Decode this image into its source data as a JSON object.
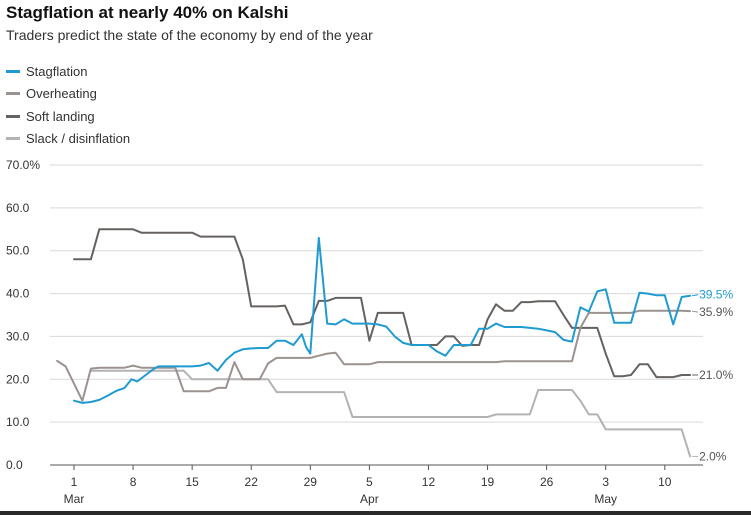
{
  "title": "Stagflation at nearly 40% on Kalshi",
  "subtitle": "Traders predict the state of the economy by end of the year",
  "chart_data": {
    "type": "line",
    "title": "Stagflation at nearly 40% on Kalshi",
    "subtitle": "Traders predict the state of the economy by end of the year",
    "xlabel": "",
    "ylabel": "",
    "ylim": [
      0,
      70
    ],
    "yticks": [
      {
        "value": 0,
        "label": "0.0"
      },
      {
        "value": 10,
        "label": "10.0"
      },
      {
        "value": 20,
        "label": "20.0"
      },
      {
        "value": 30,
        "label": "30.0"
      },
      {
        "value": 40,
        "label": "40.0"
      },
      {
        "value": 50,
        "label": "50.0"
      },
      {
        "value": 60,
        "label": "60.0"
      },
      {
        "value": 70,
        "label": "70.0%"
      }
    ],
    "xlim": [
      0,
      74
    ],
    "xticks": [
      {
        "x": 1,
        "label": "1",
        "sub": "Mar"
      },
      {
        "x": 8,
        "label": "8",
        "sub": ""
      },
      {
        "x": 15,
        "label": "15",
        "sub": ""
      },
      {
        "x": 22,
        "label": "22",
        "sub": ""
      },
      {
        "x": 29,
        "label": "29",
        "sub": ""
      },
      {
        "x": 36,
        "label": "5",
        "sub": "Apr"
      },
      {
        "x": 43,
        "label": "12",
        "sub": ""
      },
      {
        "x": 50,
        "label": "19",
        "sub": ""
      },
      {
        "x": 57,
        "label": "26",
        "sub": ""
      },
      {
        "x": 64,
        "label": "3",
        "sub": "May"
      },
      {
        "x": 71,
        "label": "10",
        "sub": ""
      }
    ],
    "legend_position": "top-left",
    "grid": "horizontal",
    "series": [
      {
        "name": "Stagflation",
        "color": "#1f9bd1",
        "end_label": "39.5%",
        "points": [
          [
            1,
            15
          ],
          [
            2,
            14.5
          ],
          [
            3,
            14.7
          ],
          [
            4,
            15.2
          ],
          [
            5,
            16.2
          ],
          [
            6,
            17.3
          ],
          [
            7,
            18
          ],
          [
            7.8,
            20
          ],
          [
            8.5,
            19.5
          ],
          [
            9.5,
            21
          ],
          [
            10.5,
            22.5
          ],
          [
            11,
            23
          ],
          [
            12,
            23
          ],
          [
            13,
            23
          ],
          [
            14,
            23
          ],
          [
            15,
            23
          ],
          [
            16,
            23.2
          ],
          [
            17,
            23.8
          ],
          [
            18,
            22
          ],
          [
            19,
            24.5
          ],
          [
            20,
            26.2
          ],
          [
            21,
            27
          ],
          [
            22,
            27.2
          ],
          [
            23,
            27.3
          ],
          [
            24,
            27.3
          ],
          [
            25,
            29
          ],
          [
            26,
            29
          ],
          [
            27,
            28
          ],
          [
            28,
            30.5
          ],
          [
            28.5,
            27.5
          ],
          [
            29,
            26
          ],
          [
            30,
            53
          ],
          [
            31,
            33
          ],
          [
            32,
            32.8
          ],
          [
            33,
            34
          ],
          [
            34,
            33
          ],
          [
            35,
            33
          ],
          [
            36,
            33
          ],
          [
            37,
            32.8
          ],
          [
            38,
            32.3
          ],
          [
            39,
            30
          ],
          [
            40,
            28.5
          ],
          [
            41,
            28
          ],
          [
            42,
            28
          ],
          [
            43,
            28
          ],
          [
            44,
            26.5
          ],
          [
            45,
            25.5
          ],
          [
            46,
            28
          ],
          [
            47,
            28
          ],
          [
            48,
            28
          ],
          [
            49,
            31.8
          ],
          [
            50,
            31.8
          ],
          [
            51,
            33
          ],
          [
            52,
            32.2
          ],
          [
            53,
            32.2
          ],
          [
            54,
            32.2
          ],
          [
            55,
            32
          ],
          [
            56,
            31.8
          ],
          [
            57,
            31.4
          ],
          [
            58,
            31
          ],
          [
            59,
            29.2
          ],
          [
            60,
            28.8
          ],
          [
            61,
            36.8
          ],
          [
            62,
            35.8
          ],
          [
            63,
            40.5
          ],
          [
            64,
            41
          ],
          [
            65,
            33.2
          ],
          [
            66,
            33.2
          ],
          [
            67,
            33.2
          ],
          [
            68,
            40.2
          ],
          [
            69,
            40
          ],
          [
            70,
            39.6
          ],
          [
            71,
            39.6
          ],
          [
            72,
            32.8
          ],
          [
            73,
            39.2
          ],
          [
            74,
            39.5
          ]
        ]
      },
      {
        "name": "Overheating",
        "color": "#9c9290",
        "end_label": "35.9%",
        "points": [
          [
            -1,
            24.3
          ],
          [
            0,
            23
          ],
          [
            1,
            19
          ],
          [
            2,
            15
          ],
          [
            3,
            22.5
          ],
          [
            4,
            22.7
          ],
          [
            5,
            22.7
          ],
          [
            6,
            22.7
          ],
          [
            7,
            22.7
          ],
          [
            8,
            23.2
          ],
          [
            9,
            22.7
          ],
          [
            10,
            22.7
          ],
          [
            11,
            22.7
          ],
          [
            12,
            22.7
          ],
          [
            13,
            22.7
          ],
          [
            14,
            17.2
          ],
          [
            15,
            17.2
          ],
          [
            16,
            17.2
          ],
          [
            17,
            17.2
          ],
          [
            18,
            18
          ],
          [
            19,
            18
          ],
          [
            20,
            24
          ],
          [
            21,
            20
          ],
          [
            22,
            20
          ],
          [
            23,
            20
          ],
          [
            24,
            23.7
          ],
          [
            25,
            25
          ],
          [
            26,
            25
          ],
          [
            27,
            25
          ],
          [
            28,
            25
          ],
          [
            29,
            25
          ],
          [
            30,
            25.5
          ],
          [
            31,
            26
          ],
          [
            32,
            26.2
          ],
          [
            33,
            23.5
          ],
          [
            34,
            23.5
          ],
          [
            35,
            23.5
          ],
          [
            36,
            23.5
          ],
          [
            37,
            24
          ],
          [
            38,
            24
          ],
          [
            39,
            24
          ],
          [
            40,
            24
          ],
          [
            41,
            24
          ],
          [
            42,
            24
          ],
          [
            43,
            24
          ],
          [
            44,
            24
          ],
          [
            45,
            24
          ],
          [
            46,
            24
          ],
          [
            47,
            24
          ],
          [
            48,
            24
          ],
          [
            49,
            24
          ],
          [
            50,
            24
          ],
          [
            51,
            24
          ],
          [
            52,
            24.2
          ],
          [
            53,
            24.2
          ],
          [
            54,
            24.2
          ],
          [
            55,
            24.2
          ],
          [
            56,
            24.2
          ],
          [
            57,
            24.2
          ],
          [
            58,
            24.2
          ],
          [
            59,
            24.2
          ],
          [
            60,
            24.2
          ],
          [
            61,
            32
          ],
          [
            62,
            35.5
          ],
          [
            63,
            35.5
          ],
          [
            64,
            35.5
          ],
          [
            65,
            35.5
          ],
          [
            66,
            35.5
          ],
          [
            67,
            35.5
          ],
          [
            68,
            36
          ],
          [
            69,
            36
          ],
          [
            70,
            36
          ],
          [
            71,
            36
          ],
          [
            72,
            36
          ],
          [
            73,
            36
          ],
          [
            74,
            35.9
          ]
        ]
      },
      {
        "name": "Soft landing",
        "color": "#66625f",
        "end_label": "21.0%",
        "points": [
          [
            1,
            48
          ],
          [
            2,
            48
          ],
          [
            3,
            48
          ],
          [
            4,
            55
          ],
          [
            5,
            55
          ],
          [
            6,
            55
          ],
          [
            7,
            55
          ],
          [
            8,
            55
          ],
          [
            9,
            54.2
          ],
          [
            10,
            54.2
          ],
          [
            11,
            54.2
          ],
          [
            12,
            54.2
          ],
          [
            13,
            54.2
          ],
          [
            14,
            54.2
          ],
          [
            15,
            54.2
          ],
          [
            16,
            53.3
          ],
          [
            17,
            53.3
          ],
          [
            18,
            53.3
          ],
          [
            19,
            53.3
          ],
          [
            20,
            53.3
          ],
          [
            21,
            48
          ],
          [
            22,
            37
          ],
          [
            23,
            37
          ],
          [
            24,
            37
          ],
          [
            25,
            37
          ],
          [
            26,
            37.2
          ],
          [
            27,
            32.8
          ],
          [
            28,
            32.8
          ],
          [
            29,
            33.3
          ],
          [
            30,
            38.3
          ],
          [
            31,
            38.3
          ],
          [
            32,
            39
          ],
          [
            33,
            39
          ],
          [
            34,
            39
          ],
          [
            35,
            39
          ],
          [
            36,
            29
          ],
          [
            37,
            35.5
          ],
          [
            38,
            35.5
          ],
          [
            39,
            35.5
          ],
          [
            40,
            35.5
          ],
          [
            41,
            28
          ],
          [
            42,
            28
          ],
          [
            43,
            28
          ],
          [
            44,
            28
          ],
          [
            45,
            30
          ],
          [
            46,
            30
          ],
          [
            47,
            27.8
          ],
          [
            48,
            28
          ],
          [
            49,
            28
          ],
          [
            50,
            34
          ],
          [
            51,
            37.5
          ],
          [
            52,
            36
          ],
          [
            53,
            36
          ],
          [
            54,
            38
          ],
          [
            55,
            38
          ],
          [
            56,
            38.2
          ],
          [
            57,
            38.2
          ],
          [
            58,
            38.2
          ],
          [
            59,
            35
          ],
          [
            60,
            32
          ],
          [
            61,
            32
          ],
          [
            62,
            32
          ],
          [
            63,
            32
          ],
          [
            64,
            26
          ],
          [
            65,
            20.7
          ],
          [
            66,
            20.7
          ],
          [
            67,
            21
          ],
          [
            68,
            23.5
          ],
          [
            69,
            23.5
          ],
          [
            70,
            20.5
          ],
          [
            71,
            20.5
          ],
          [
            72,
            20.5
          ],
          [
            73,
            21
          ],
          [
            74,
            21
          ]
        ]
      },
      {
        "name": "Slack / disinflation",
        "color": "#b3b3b3",
        "end_label": "2.0%",
        "points": [
          [
            3,
            22
          ],
          [
            4,
            22
          ],
          [
            5,
            22
          ],
          [
            6,
            22
          ],
          [
            7,
            22
          ],
          [
            8,
            22
          ],
          [
            9,
            22
          ],
          [
            10,
            22
          ],
          [
            11,
            22
          ],
          [
            12,
            22
          ],
          [
            13,
            22
          ],
          [
            14,
            22
          ],
          [
            15,
            20
          ],
          [
            16,
            20
          ],
          [
            17,
            20
          ],
          [
            18,
            20
          ],
          [
            19,
            20
          ],
          [
            20,
            20
          ],
          [
            21,
            20
          ],
          [
            22,
            20
          ],
          [
            23,
            20
          ],
          [
            24,
            20
          ],
          [
            25,
            17
          ],
          [
            26,
            17
          ],
          [
            27,
            17
          ],
          [
            28,
            17
          ],
          [
            29,
            17
          ],
          [
            30,
            17
          ],
          [
            31,
            17
          ],
          [
            32,
            17
          ],
          [
            33,
            17
          ],
          [
            34,
            11.2
          ],
          [
            35,
            11.2
          ],
          [
            36,
            11.2
          ],
          [
            37,
            11.2
          ],
          [
            38,
            11.2
          ],
          [
            39,
            11.2
          ],
          [
            40,
            11.2
          ],
          [
            41,
            11.2
          ],
          [
            42,
            11.2
          ],
          [
            43,
            11.2
          ],
          [
            44,
            11.2
          ],
          [
            45,
            11.2
          ],
          [
            46,
            11.2
          ],
          [
            47,
            11.2
          ],
          [
            48,
            11.2
          ],
          [
            49,
            11.2
          ],
          [
            50,
            11.2
          ],
          [
            51,
            11.8
          ],
          [
            52,
            11.8
          ],
          [
            53,
            11.8
          ],
          [
            54,
            11.8
          ],
          [
            55,
            11.8
          ],
          [
            56,
            17.5
          ],
          [
            57,
            17.5
          ],
          [
            58,
            17.5
          ],
          [
            59,
            17.5
          ],
          [
            60,
            17.5
          ],
          [
            61,
            15
          ],
          [
            62,
            11.8
          ],
          [
            63,
            11.8
          ],
          [
            64,
            8.3
          ],
          [
            65,
            8.3
          ],
          [
            66,
            8.3
          ],
          [
            67,
            8.3
          ],
          [
            68,
            8.3
          ],
          [
            69,
            8.3
          ],
          [
            70,
            8.3
          ],
          [
            71,
            8.3
          ],
          [
            72,
            8.3
          ],
          [
            73,
            8.3
          ],
          [
            74,
            2
          ]
        ]
      }
    ]
  }
}
